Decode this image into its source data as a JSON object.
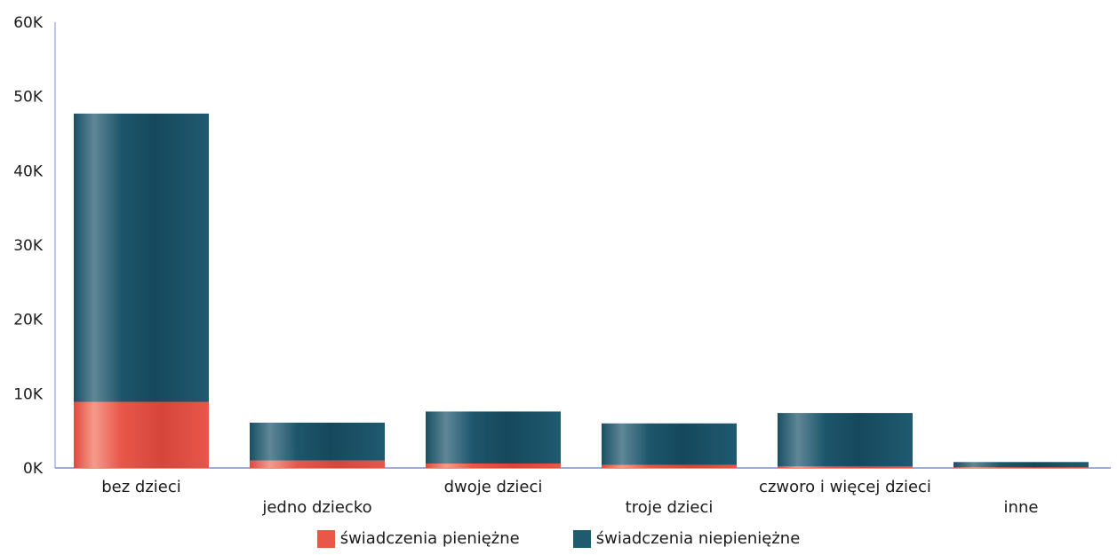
{
  "chart_data": {
    "type": "bar",
    "stacked": true,
    "categories": [
      "bez dzieci",
      "jedno dziecko",
      "dwoje dzieci",
      "troje dzieci",
      "czworo i więcej dzieci",
      "inne"
    ],
    "series": [
      {
        "name": "świadczenia pieniężne",
        "color": "#e8574a",
        "values": [
          8900,
          1000,
          600,
          400,
          200,
          100
        ]
      },
      {
        "name": "świadczenia niepieniężne",
        "color": "#1f5a70",
        "values": [
          38800,
          5100,
          7000,
          5600,
          7200,
          700
        ]
      }
    ],
    "yticks": [
      "0K",
      "10K",
      "20K",
      "30K",
      "40K",
      "50K",
      "60K"
    ],
    "ylim": [
      0,
      60000
    ],
    "grid": false,
    "legend_position": "bottom"
  }
}
